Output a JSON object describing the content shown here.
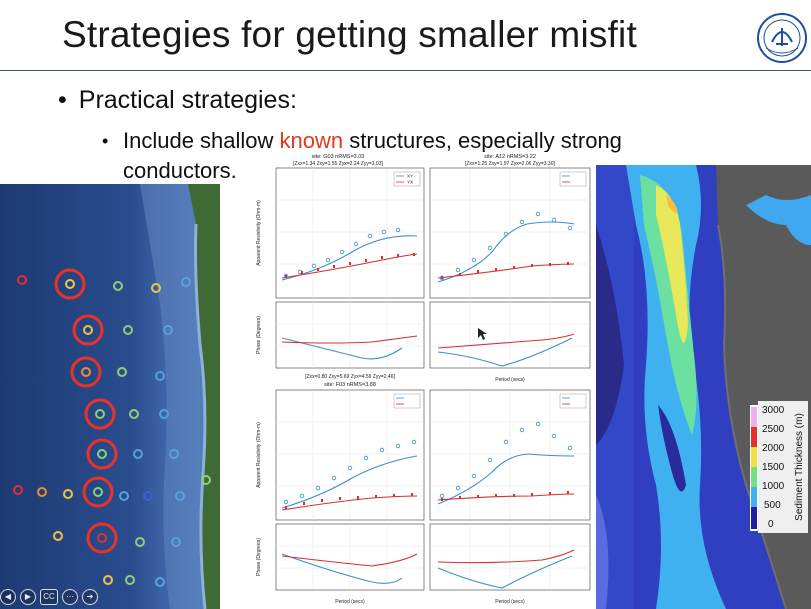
{
  "slide": {
    "title": "Strategies for getting smaller misfit",
    "bullet1": "Practical strategies:",
    "bullet2_before": "Include shallow ",
    "bullet2_highlight": "known",
    "bullet2_after": " structures, especially strong conductors.",
    "highlight_color": "#e03a1e"
  },
  "logo": {
    "text": "ZHEJIANG UNIVERSITY"
  },
  "plots": {
    "panels": [
      {
        "title1": "site: G03 nRMS=3.03",
        "title2": "[Zxx=1.34 Zxy=1.55 Zyx=2.24 Zyy=3.03]"
      },
      {
        "title1": "site: A12 nRMS=3.22",
        "title2": "[Zxx=1.25 Zxy=1.97 Zyx=2.06 Zyy=3.30]"
      },
      {
        "title1": "site: F03 nRMS=3.88",
        "title2": "[Zxx=0.80 Zxy=5.69 Zyx=4.59 Zyy=2.46]"
      }
    ],
    "legend": [
      "XY",
      "YX"
    ],
    "ylabel_rho": "Apparent Resistivity (Ohm-m)",
    "ylabel_phase": "Phase (Degrees)",
    "xlabel": "Period (secs)"
  },
  "colorbar": {
    "label": "Sediment Thickness (m)",
    "ticks": [
      "3000",
      "2500",
      "2000",
      "1500",
      "1000",
      "500",
      "0"
    ]
  },
  "controls": [
    "prev-icon",
    "next-icon",
    "cc-icon",
    "more-icon",
    "forward-icon"
  ]
}
